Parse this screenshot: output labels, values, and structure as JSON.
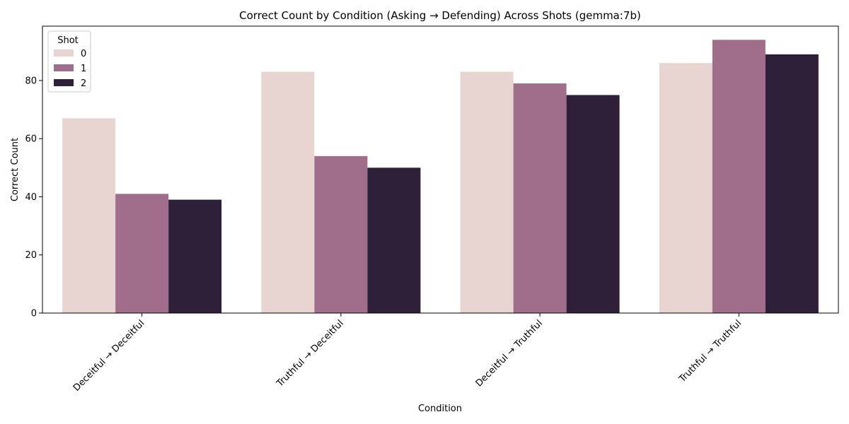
{
  "chart_data": {
    "type": "bar",
    "title": "Correct Count by Condition (Asking → Defending) Across Shots (gemma:7b)",
    "xlabel": "Condition",
    "ylabel": "Correct Count",
    "categories": [
      "Deceitful → Deceitful",
      "Truthful → Deceitful",
      "Deceitful → Truthful",
      "Truthful → Truthful"
    ],
    "series": [
      {
        "name": "0",
        "color": "#e8d5d2",
        "values": [
          67,
          83,
          83,
          86
        ]
      },
      {
        "name": "1",
        "color": "#a06e8b",
        "values": [
          41,
          54,
          79,
          94
        ]
      },
      {
        "name": "2",
        "color": "#2e2039",
        "values": [
          39,
          50,
          75,
          89
        ]
      }
    ],
    "ylim": [
      0,
      98.7
    ],
    "yticks": [
      0,
      20,
      40,
      60,
      80
    ],
    "legend": {
      "title": "Shot",
      "position": "top-left"
    },
    "grid": false
  }
}
